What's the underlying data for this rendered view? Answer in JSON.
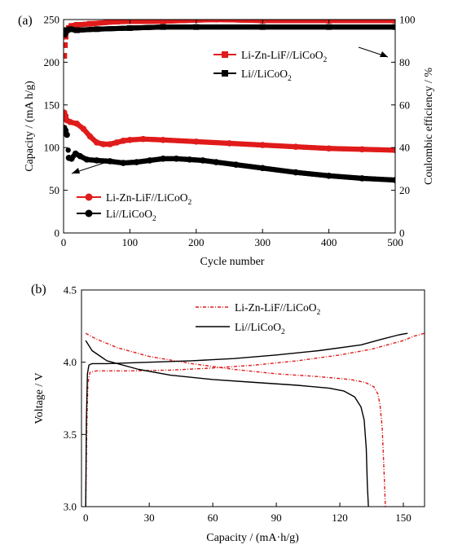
{
  "colors": {
    "red": "#e01b1b",
    "black": "#000000"
  },
  "panel_a": {
    "label": "(a)",
    "xlabel": "Cycle number",
    "ylabel_left": "Capacity / (mA h/g)",
    "ylabel_right": "Coulombic efficiency / %",
    "xticks": [
      "0",
      "100",
      "200",
      "300",
      "400",
      "500"
    ],
    "yticks_left": [
      "0",
      "50",
      "100",
      "150",
      "200",
      "250"
    ],
    "yticks_right": [
      "0",
      "20",
      "40",
      "60",
      "80",
      "100"
    ],
    "legend_ce": [
      {
        "main": "Li-Zn-LiF//LiCoO",
        "sub": "2"
      },
      {
        "main": "Li//LiCoO",
        "sub": "2"
      }
    ],
    "legend_cap": [
      {
        "main": "Li-Zn-LiF//LiCoO",
        "sub": "2"
      },
      {
        "main": "Li//LiCoO",
        "sub": "2"
      }
    ]
  },
  "panel_b": {
    "label": "(b)",
    "xlabel": "Capacity / (mA·h/g)",
    "ylabel": "Voltage / V",
    "xticks": [
      "0",
      "30",
      "60",
      "90",
      "120",
      "150"
    ],
    "yticks": [
      "3.0",
      "3.5",
      "4.0",
      "4.5"
    ],
    "legend": [
      {
        "main": "Li-Zn-LiF//LiCoO",
        "sub": "2"
      },
      {
        "main": "Li//LiCoO",
        "sub": "2"
      }
    ]
  },
  "chart_data": [
    {
      "type": "scatter",
      "xlabel": "Cycle number",
      "ylabel": "Capacity / (mA h/g)",
      "y2label": "Coulombic efficiency / %",
      "xlim": [
        0,
        500
      ],
      "ylim": [
        0,
        250
      ],
      "y2lim": [
        0,
        100
      ],
      "series": [
        {
          "name": "Li-Zn-LiF//LiCoO2",
          "axis": "right",
          "color": "red",
          "marker": "square",
          "x": [
            1,
            2,
            3,
            5,
            8,
            12,
            20,
            40,
            80,
            150,
            230,
            300,
            400,
            500
          ],
          "y": [
            83,
            88,
            92,
            95,
            96,
            97,
            97.5,
            98,
            99,
            99.2,
            100,
            99.5,
            99.5,
            99.5
          ]
        },
        {
          "name": "Li//LiCoO2",
          "axis": "right",
          "color": "black",
          "marker": "square",
          "x": [
            1,
            3,
            5,
            10,
            20,
            50,
            100,
            150,
            200,
            300,
            400,
            500
          ],
          "y": [
            93,
            94,
            95,
            95.5,
            95,
            95.5,
            96,
            96.5,
            96.5,
            96.5,
            96.5,
            96.5
          ]
        },
        {
          "name": "Li-Zn-LiF//LiCoO2",
          "axis": "left",
          "color": "red",
          "marker": "circle",
          "x": [
            1,
            3,
            5,
            10,
            20,
            30,
            40,
            50,
            60,
            70,
            80,
            90,
            100,
            120,
            150,
            200,
            250,
            300,
            350,
            400,
            450,
            500
          ],
          "y": [
            141,
            137,
            132,
            130,
            128,
            122,
            113,
            106,
            104,
            104,
            106,
            108,
            109,
            110,
            109,
            107,
            105,
            103,
            101,
            99,
            98,
            97
          ]
        },
        {
          "name": "Li//LiCoO2",
          "axis": "left",
          "color": "black",
          "marker": "circle",
          "x": [
            1,
            3,
            5,
            8,
            12,
            18,
            25,
            35,
            50,
            70,
            90,
            110,
            130,
            150,
            170,
            190,
            210,
            230,
            260,
            300,
            350,
            400,
            450,
            500
          ],
          "y": [
            123,
            120,
            115,
            88,
            87,
            93,
            90,
            86,
            85,
            84,
            82,
            83,
            85,
            87,
            87,
            86,
            85,
            83,
            80,
            76,
            71,
            67,
            64,
            62
          ]
        }
      ],
      "annotations": [
        "arrow from legend to coulombic efficiency curves",
        "arrow from legend to capacity curves"
      ]
    },
    {
      "type": "line",
      "xlabel": "Capacity / (mA·h/g)",
      "ylabel": "Voltage / V",
      "xlim": [
        -2,
        160
      ],
      "ylim": [
        3.0,
        4.5
      ],
      "series": [
        {
          "name": "Li-Zn-LiF//LiCoO2 charge",
          "color": "red",
          "style": "dashed",
          "x": [
            0,
            0.5,
            1,
            2,
            5,
            20,
            40,
            60,
            80,
            100,
            120,
            135,
            150,
            155,
            160
          ],
          "y": [
            3.0,
            3.55,
            3.85,
            3.93,
            3.94,
            3.94,
            3.945,
            3.96,
            3.98,
            4.01,
            4.05,
            4.09,
            4.15,
            4.18,
            4.2
          ]
        },
        {
          "name": "Li-Zn-LiF//LiCoO2 discharge",
          "color": "red",
          "style": "dashed",
          "x": [
            0,
            5,
            15,
            30,
            50,
            70,
            90,
            110,
            125,
            132,
            136,
            138,
            139,
            140,
            141,
            141.5
          ],
          "y": [
            4.2,
            4.16,
            4.1,
            4.04,
            3.99,
            3.95,
            3.92,
            3.9,
            3.88,
            3.86,
            3.83,
            3.78,
            3.7,
            3.55,
            3.2,
            3.0
          ]
        },
        {
          "name": "Li//LiCoO2 charge",
          "color": "black",
          "style": "solid",
          "x": [
            0,
            0.3,
            0.8,
            1.5,
            3,
            10,
            30,
            50,
            70,
            90,
            110,
            130,
            140,
            148,
            152
          ],
          "y": [
            3.0,
            3.6,
            3.92,
            3.98,
            3.99,
            3.99,
            4.0,
            4.01,
            4.025,
            4.05,
            4.08,
            4.12,
            4.16,
            4.19,
            4.2
          ]
        },
        {
          "name": "Li//LiCoO2 discharge",
          "color": "black",
          "style": "solid",
          "x": [
            0,
            3,
            10,
            25,
            40,
            60,
            80,
            100,
            115,
            122,
            127,
            130,
            131.5,
            132.5,
            133,
            133.5
          ],
          "y": [
            4.15,
            4.08,
            4.01,
            3.95,
            3.91,
            3.88,
            3.86,
            3.84,
            3.82,
            3.8,
            3.76,
            3.69,
            3.6,
            3.4,
            3.15,
            3.0
          ]
        }
      ]
    }
  ]
}
